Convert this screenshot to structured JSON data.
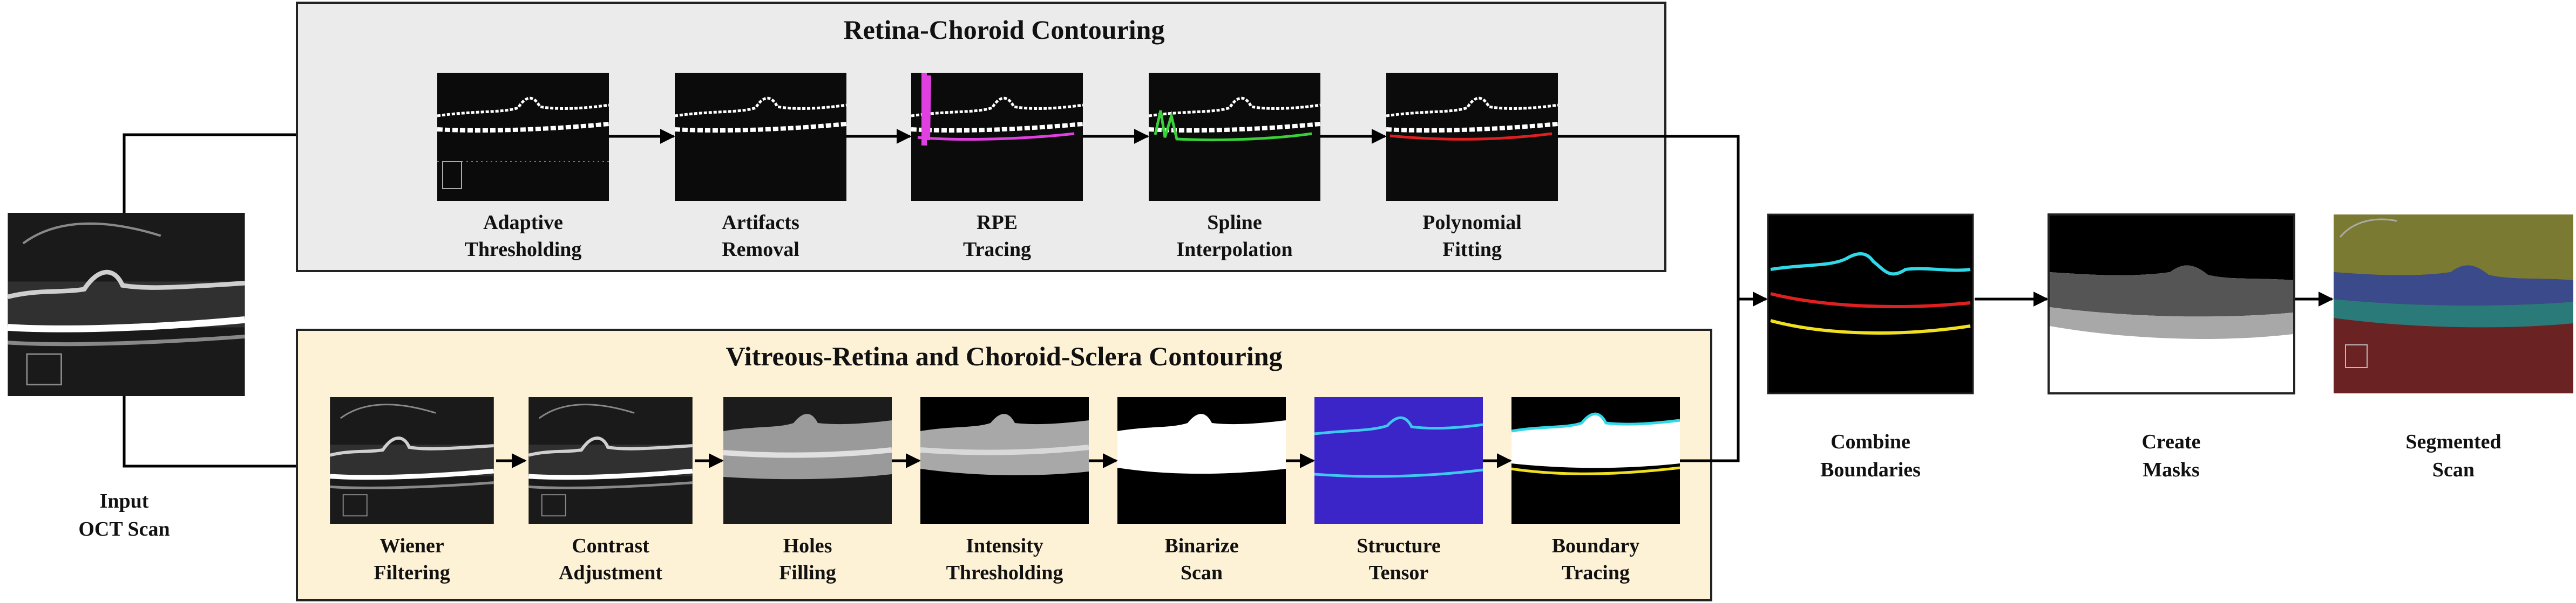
{
  "title_top": "Retina-Choroid Contouring",
  "title_bottom": "Vitreous-Retina and Choroid-Sclera Contouring",
  "input": {
    "label_1": "Input",
    "label_2": "OCT Scan"
  },
  "top_steps": [
    {
      "line1": "Adaptive",
      "line2": "Thresholding"
    },
    {
      "line1": "Artifacts",
      "line2": "Removal"
    },
    {
      "line1": "RPE",
      "line2": "Tracing"
    },
    {
      "line1": "Spline",
      "line2": "Interpolation"
    },
    {
      "line1": "Polynomial",
      "line2": "Fitting"
    }
  ],
  "bottom_steps": [
    {
      "line1": "Wiener",
      "line2": "Filtering"
    },
    {
      "line1": "Contrast",
      "line2": "Adjustment"
    },
    {
      "line1": "Holes",
      "line2": "Filling"
    },
    {
      "line1": "Intensity",
      "line2": "Thresholding"
    },
    {
      "line1": "Binarize",
      "line2": "Scan"
    },
    {
      "line1": "Structure",
      "line2": "Tensor"
    },
    {
      "line1": "Boundary",
      "line2": "Tracing"
    }
  ],
  "right_steps": [
    {
      "line1": "Combine",
      "line2": "Boundaries"
    },
    {
      "line1": "Create",
      "line2": "Masks"
    },
    {
      "line1": "Segmented",
      "line2": "Scan"
    }
  ],
  "colors": {
    "top_panel_bg": "#ebebeb",
    "bottom_panel_bg": "#fdf1d6",
    "rpe_trace": "#e040e0",
    "spline": "#39d039",
    "polynomial": "#e02020",
    "tensor_bg": "#3b24c8",
    "tensor_lines": "#3ec8f0",
    "boundary_top": "#30d8e8",
    "boundary_mid": "#e02020",
    "boundary_bottom": "#f0e020"
  }
}
